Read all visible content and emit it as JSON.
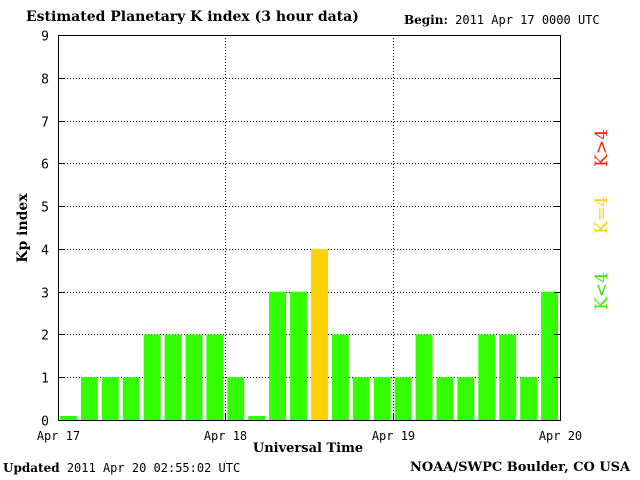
{
  "header": {
    "title": "Estimated Planetary K index (3 hour data)",
    "begin_label": "Begin:",
    "begin_value": "2011 Apr 17 0000 UTC"
  },
  "footer": {
    "updated_label": "Updated",
    "updated_value": "2011 Apr 20 02:55:02 UTC",
    "credit": "NOAA/SWPC Boulder, CO USA"
  },
  "chart_data": {
    "type": "bar",
    "title": "Estimated Planetary K index (3 hour data)",
    "xlabel": "Universal Time",
    "ylabel": "Kp index",
    "ylim": [
      0,
      9
    ],
    "yticks": [
      0,
      1,
      2,
      3,
      4,
      5,
      6,
      7,
      8,
      9
    ],
    "xticks": [
      "Apr 17",
      "Apr 18",
      "Apr 19",
      "Apr 20"
    ],
    "grid": "dotted, at day boundaries and each integer Kp",
    "values": [
      0,
      1,
      1,
      1,
      2,
      2,
      2,
      2,
      1,
      0,
      3,
      3,
      4,
      2,
      1,
      1,
      1,
      2,
      1,
      1,
      2,
      2,
      1,
      3
    ],
    "legend": [
      {
        "label": "K>4",
        "color": "#ff2200"
      },
      {
        "label": "K=4",
        "color": "#ffd200"
      },
      {
        "label": "K<4",
        "color": "#33ee00"
      }
    ],
    "colors": {
      "below": "#33ff00",
      "equal": "#ffd200",
      "above": "#ff2200"
    }
  }
}
